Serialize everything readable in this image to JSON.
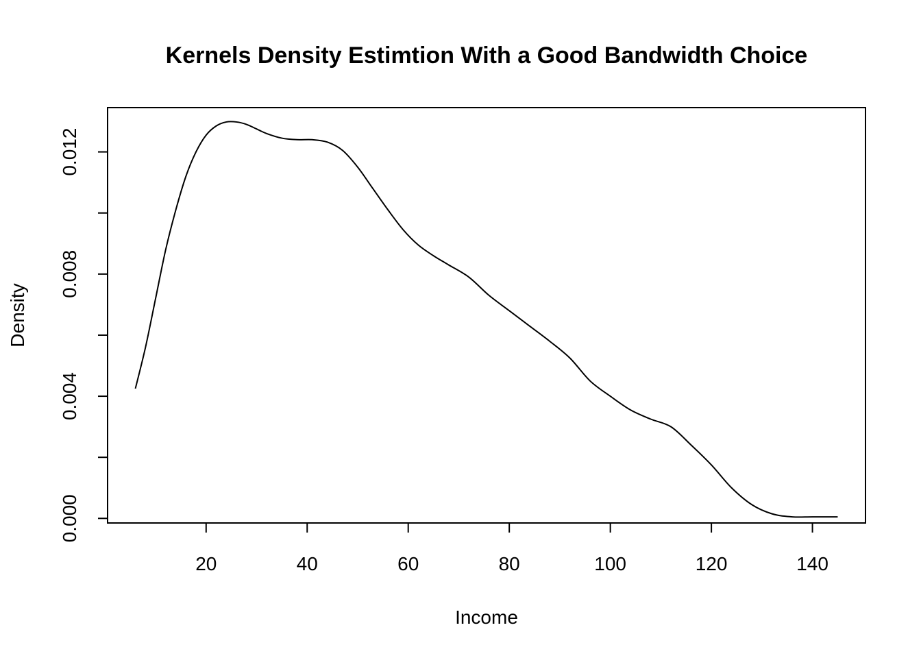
{
  "chart_data": {
    "type": "line",
    "title": "Kernels Density Estimtion With a Good Bandwidth Choice",
    "xlabel": "Income",
    "ylabel": "Density",
    "xlim": [
      0.5,
      150.5
    ],
    "ylim": [
      -0.00015,
      0.01345
    ],
    "x_ticks": [
      20,
      40,
      60,
      80,
      100,
      120,
      140
    ],
    "x_tick_labels": [
      "20",
      "40",
      "60",
      "80",
      "100",
      "120",
      "140"
    ],
    "y_ticks": [
      0.0,
      0.002,
      0.004,
      0.006,
      0.008,
      0.01,
      0.012
    ],
    "y_tick_labels": [
      "0.000",
      "",
      "0.004",
      "",
      "0.008",
      "",
      "0.012"
    ],
    "grid": false,
    "legend": "none",
    "series": [
      {
        "color": "#000000",
        "x": [
          6,
          8,
          10,
          12,
          14,
          16,
          18,
          20,
          22,
          24,
          26,
          28,
          30,
          32,
          35,
          38,
          41,
          44,
          47,
          50,
          53,
          56,
          59,
          62,
          65,
          68,
          72,
          76,
          80,
          84,
          88,
          92,
          96,
          100,
          104,
          108,
          112,
          116,
          120,
          124,
          128,
          132,
          136,
          140,
          145
        ],
        "y": [
          0.00425,
          0.0056,
          0.0072,
          0.0088,
          0.0101,
          0.0112,
          0.012,
          0.01255,
          0.01285,
          0.01298,
          0.01298,
          0.0129,
          0.01275,
          0.0126,
          0.01245,
          0.0124,
          0.0124,
          0.01232,
          0.01205,
          0.0115,
          0.0108,
          0.0101,
          0.00945,
          0.00895,
          0.0086,
          0.0083,
          0.0079,
          0.0073,
          0.0068,
          0.0063,
          0.0058,
          0.00525,
          0.0045,
          0.004,
          0.00355,
          0.00325,
          0.003,
          0.0024,
          0.00175,
          0.001,
          0.00045,
          0.00015,
          5e-05,
          5e-05,
          5e-05
        ]
      }
    ]
  }
}
